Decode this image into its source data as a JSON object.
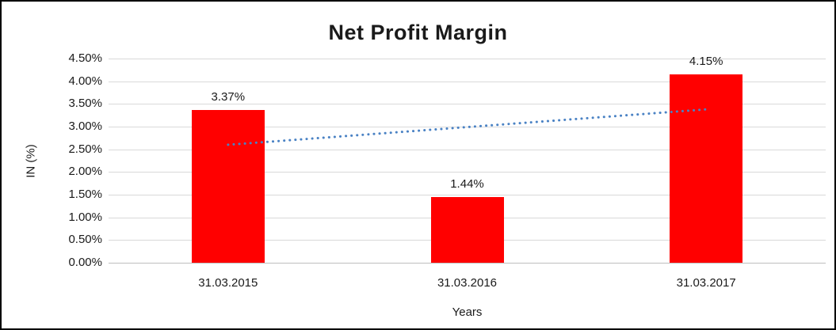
{
  "chart_data": {
    "type": "bar",
    "title": "Net Profit Margin",
    "categories": [
      "31.03.2015",
      "31.03.2016",
      "31.03.2017"
    ],
    "values": [
      3.37,
      1.44,
      4.15
    ],
    "value_labels": [
      "3.37%",
      "1.44%",
      "4.15%"
    ],
    "xlabel": "Years",
    "ylabel": "IN (%)",
    "ylim": [
      0,
      4.5
    ],
    "ytick_step": 0.5,
    "ytick_labels": [
      "0.00%",
      "0.50%",
      "1.00%",
      "1.50%",
      "2.00%",
      "2.50%",
      "3.00%",
      "3.50%",
      "4.00%",
      "4.50%"
    ],
    "grid": true,
    "legend": "none",
    "bar_color": "#ff0000",
    "gridline_color": "#d9d9d9",
    "axis_line_color": "#bfbfbf",
    "text_color": "#1a1a1a",
    "trendline": {
      "type": "linear",
      "style": "dotted",
      "color": "#4a82c4",
      "start_value": 2.6,
      "end_value": 3.38
    }
  }
}
